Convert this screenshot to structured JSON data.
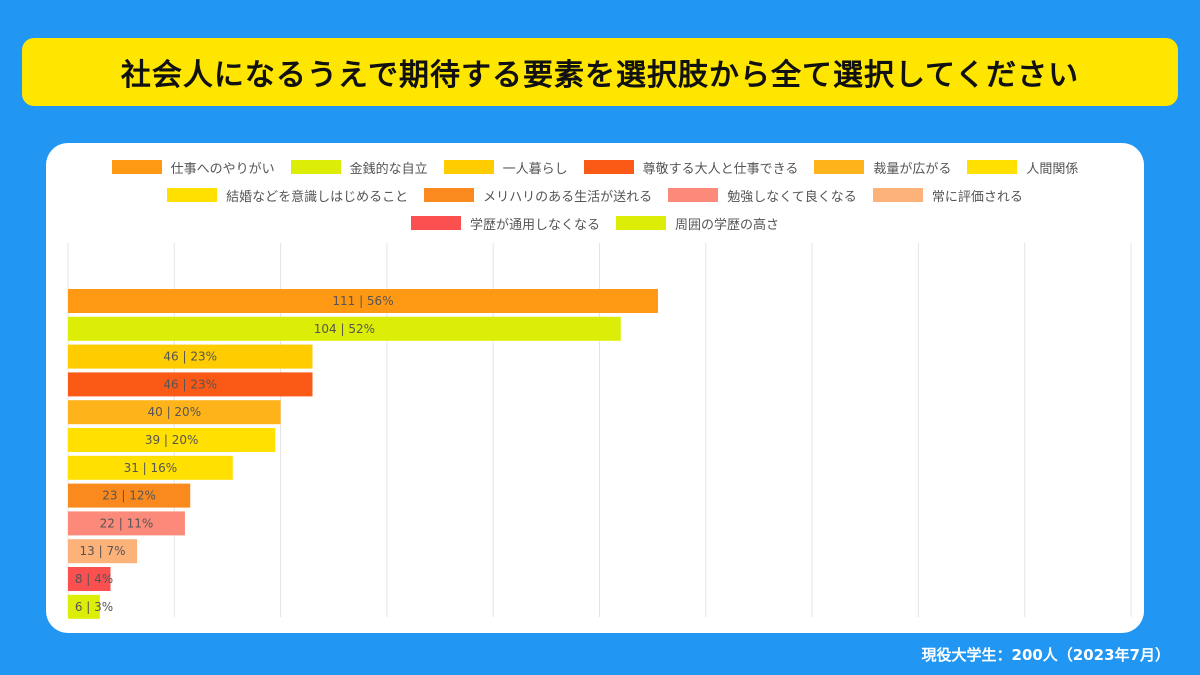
{
  "title": "社会人になるうえで期待する要素を選択肢から全て選択してください",
  "footer_note": "現役大学生：200人（2023年7月）",
  "chart_data": {
    "type": "bar",
    "orientation": "horizontal",
    "xlim": [
      0,
      200
    ],
    "grid": true,
    "legend_position": "top",
    "categories": [
      "仕事へのやりがい",
      "金銭的な自立",
      "一人暮らし",
      "尊敬する大人と仕事できる",
      "裁量が広がる",
      "人間関係",
      "結婚などを意識しはじめること",
      "メリハリのある生活が送れる",
      "勉強しなくて良くなる",
      "常に評価される",
      "学歴が通用しなくなる",
      "周囲の学歴の高さ"
    ],
    "values": [
      111,
      104,
      46,
      46,
      40,
      39,
      31,
      23,
      22,
      13,
      8,
      6
    ],
    "percents": [
      56,
      52,
      23,
      23,
      20,
      20,
      16,
      12,
      11,
      7,
      4,
      3
    ],
    "data_labels": [
      "111 | 56%",
      "104 | 52%",
      "46 | 23%",
      "46 | 23%",
      "40 | 20%",
      "39 | 20%",
      "31 | 16%",
      "23 | 12%",
      "22 | 11%",
      "13 | 7%",
      "8 | 4%",
      "6 | 3%"
    ],
    "colors": [
      "#ff9914",
      "#dcee07",
      "#ffcc00",
      "#fb5a16",
      "#ffb31a",
      "#ffe000",
      "#ffe000",
      "#fb8a1e",
      "#fb8a7a",
      "#fdb27a",
      "#fa5050",
      "#dcee07"
    ]
  }
}
